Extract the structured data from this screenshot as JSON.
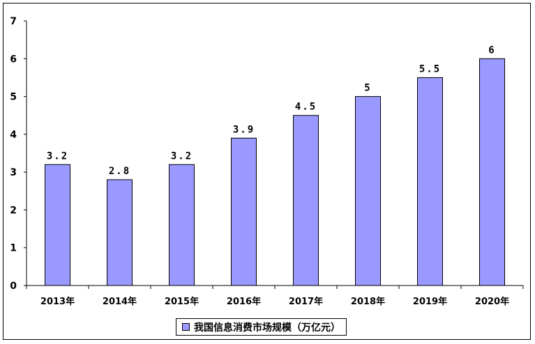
{
  "chart_data": {
    "type": "bar",
    "categories": [
      "2013年",
      "2014年",
      "2015年",
      "2016年",
      "2017年",
      "2018年",
      "2019年",
      "2020年"
    ],
    "series": [
      {
        "name": "我国信息消费市场规模（万亿元）",
        "values": [
          3.2,
          2.8,
          3.2,
          3.9,
          4.5,
          5,
          5.5,
          6
        ],
        "data_labels": [
          "3.2",
          "2.8",
          "3.2",
          "3.9",
          "4.5",
          "5",
          "5.5",
          "6"
        ]
      }
    ],
    "yticks": [
      "0",
      "1",
      "2",
      "3",
      "4",
      "5",
      "6",
      "7"
    ],
    "ylim": [
      0,
      7
    ],
    "grid": false,
    "legend_position": "bottom",
    "bar_color": "#9999ff"
  }
}
